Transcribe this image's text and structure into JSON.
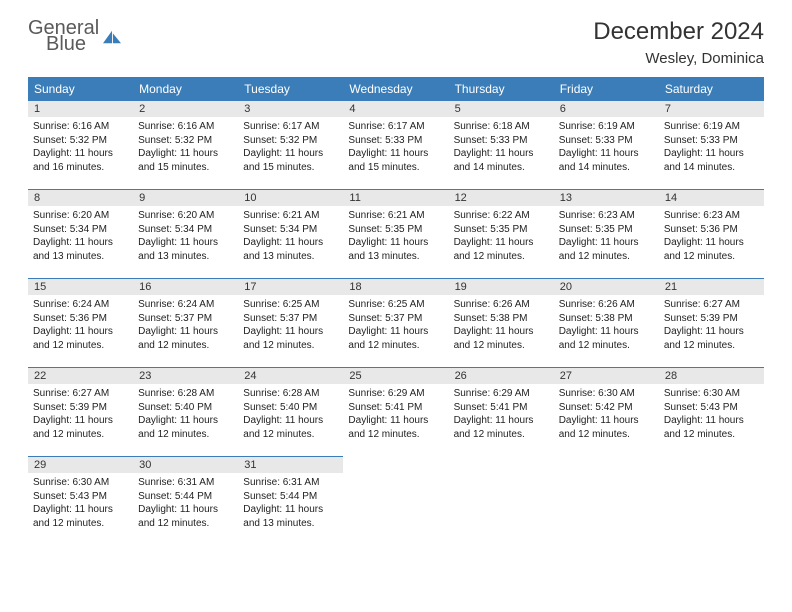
{
  "logo": {
    "line1": "General",
    "line2": "Blue",
    "icon_color": "#3a7db8"
  },
  "title": "December 2024",
  "location": "Wesley, Dominica",
  "colors": {
    "header_bg": "#3a7db8",
    "header_text": "#ffffff",
    "daynum_bg": "#e8e8e8",
    "border": "#3a7db8",
    "text": "#222222"
  },
  "dayNames": [
    "Sunday",
    "Monday",
    "Tuesday",
    "Wednesday",
    "Thursday",
    "Friday",
    "Saturday"
  ],
  "weeks": [
    [
      {
        "n": "1",
        "sr": "6:16 AM",
        "ss": "5:32 PM",
        "dl": "11 hours and 16 minutes."
      },
      {
        "n": "2",
        "sr": "6:16 AM",
        "ss": "5:32 PM",
        "dl": "11 hours and 15 minutes."
      },
      {
        "n": "3",
        "sr": "6:17 AM",
        "ss": "5:32 PM",
        "dl": "11 hours and 15 minutes."
      },
      {
        "n": "4",
        "sr": "6:17 AM",
        "ss": "5:33 PM",
        "dl": "11 hours and 15 minutes."
      },
      {
        "n": "5",
        "sr": "6:18 AM",
        "ss": "5:33 PM",
        "dl": "11 hours and 14 minutes."
      },
      {
        "n": "6",
        "sr": "6:19 AM",
        "ss": "5:33 PM",
        "dl": "11 hours and 14 minutes."
      },
      {
        "n": "7",
        "sr": "6:19 AM",
        "ss": "5:33 PM",
        "dl": "11 hours and 14 minutes."
      }
    ],
    [
      {
        "n": "8",
        "sr": "6:20 AM",
        "ss": "5:34 PM",
        "dl": "11 hours and 13 minutes."
      },
      {
        "n": "9",
        "sr": "6:20 AM",
        "ss": "5:34 PM",
        "dl": "11 hours and 13 minutes."
      },
      {
        "n": "10",
        "sr": "6:21 AM",
        "ss": "5:34 PM",
        "dl": "11 hours and 13 minutes."
      },
      {
        "n": "11",
        "sr": "6:21 AM",
        "ss": "5:35 PM",
        "dl": "11 hours and 13 minutes."
      },
      {
        "n": "12",
        "sr": "6:22 AM",
        "ss": "5:35 PM",
        "dl": "11 hours and 12 minutes."
      },
      {
        "n": "13",
        "sr": "6:23 AM",
        "ss": "5:35 PM",
        "dl": "11 hours and 12 minutes."
      },
      {
        "n": "14",
        "sr": "6:23 AM",
        "ss": "5:36 PM",
        "dl": "11 hours and 12 minutes."
      }
    ],
    [
      {
        "n": "15",
        "sr": "6:24 AM",
        "ss": "5:36 PM",
        "dl": "11 hours and 12 minutes."
      },
      {
        "n": "16",
        "sr": "6:24 AM",
        "ss": "5:37 PM",
        "dl": "11 hours and 12 minutes."
      },
      {
        "n": "17",
        "sr": "6:25 AM",
        "ss": "5:37 PM",
        "dl": "11 hours and 12 minutes."
      },
      {
        "n": "18",
        "sr": "6:25 AM",
        "ss": "5:37 PM",
        "dl": "11 hours and 12 minutes."
      },
      {
        "n": "19",
        "sr": "6:26 AM",
        "ss": "5:38 PM",
        "dl": "11 hours and 12 minutes."
      },
      {
        "n": "20",
        "sr": "6:26 AM",
        "ss": "5:38 PM",
        "dl": "11 hours and 12 minutes."
      },
      {
        "n": "21",
        "sr": "6:27 AM",
        "ss": "5:39 PM",
        "dl": "11 hours and 12 minutes."
      }
    ],
    [
      {
        "n": "22",
        "sr": "6:27 AM",
        "ss": "5:39 PM",
        "dl": "11 hours and 12 minutes."
      },
      {
        "n": "23",
        "sr": "6:28 AM",
        "ss": "5:40 PM",
        "dl": "11 hours and 12 minutes."
      },
      {
        "n": "24",
        "sr": "6:28 AM",
        "ss": "5:40 PM",
        "dl": "11 hours and 12 minutes."
      },
      {
        "n": "25",
        "sr": "6:29 AM",
        "ss": "5:41 PM",
        "dl": "11 hours and 12 minutes."
      },
      {
        "n": "26",
        "sr": "6:29 AM",
        "ss": "5:41 PM",
        "dl": "11 hours and 12 minutes."
      },
      {
        "n": "27",
        "sr": "6:30 AM",
        "ss": "5:42 PM",
        "dl": "11 hours and 12 minutes."
      },
      {
        "n": "28",
        "sr": "6:30 AM",
        "ss": "5:43 PM",
        "dl": "11 hours and 12 minutes."
      }
    ],
    [
      {
        "n": "29",
        "sr": "6:30 AM",
        "ss": "5:43 PM",
        "dl": "11 hours and 12 minutes."
      },
      {
        "n": "30",
        "sr": "6:31 AM",
        "ss": "5:44 PM",
        "dl": "11 hours and 12 minutes."
      },
      {
        "n": "31",
        "sr": "6:31 AM",
        "ss": "5:44 PM",
        "dl": "11 hours and 13 minutes."
      },
      null,
      null,
      null,
      null
    ]
  ],
  "labels": {
    "sunrise": "Sunrise:",
    "sunset": "Sunset:",
    "daylight": "Daylight:"
  }
}
